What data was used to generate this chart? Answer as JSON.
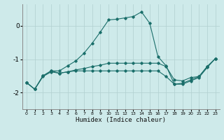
{
  "xlabel": "Humidex (Indice chaleur)",
  "bg_color": "#ceeaea",
  "grid_color": "#b0d0d0",
  "line_color": "#1a6e6a",
  "xlim": [
    -0.5,
    23.5
  ],
  "ylim": [
    -2.5,
    0.65
  ],
  "yticks": [
    0,
    -1,
    -2
  ],
  "xticks": [
    0,
    1,
    2,
    3,
    4,
    5,
    6,
    7,
    8,
    9,
    10,
    11,
    12,
    13,
    14,
    15,
    16,
    17,
    18,
    19,
    20,
    21,
    22,
    23
  ],
  "series": [
    {
      "x": [
        0,
        1,
        2,
        3,
        4,
        5,
        6,
        7,
        8,
        9,
        10,
        11,
        12,
        13,
        14,
        15,
        16,
        17,
        18,
        19,
        20,
        21,
        22,
        23
      ],
      "y": [
        -1.7,
        -1.9,
        -1.5,
        -1.35,
        -1.35,
        -1.2,
        -1.05,
        -0.82,
        -0.52,
        -0.18,
        0.18,
        0.2,
        0.24,
        0.28,
        0.42,
        0.08,
        -0.92,
        -1.2,
        -1.75,
        -1.72,
        -1.62,
        -1.52,
        -1.22,
        -0.98
      ]
    },
    {
      "x": [
        0,
        1,
        2,
        3,
        4,
        5,
        6,
        7,
        8,
        9,
        10,
        11,
        12,
        13,
        14,
        15,
        16,
        17,
        18,
        19,
        20,
        21,
        22,
        23
      ],
      "y": [
        -1.7,
        -1.9,
        -1.5,
        -1.35,
        -1.42,
        -1.38,
        -1.32,
        -1.28,
        -1.22,
        -1.18,
        -1.12,
        -1.12,
        -1.12,
        -1.12,
        -1.12,
        -1.12,
        -1.12,
        -1.22,
        -1.62,
        -1.65,
        -1.55,
        -1.52,
        -1.22,
        -0.98
      ]
    },
    {
      "x": [
        0,
        1,
        2,
        3,
        4,
        5,
        6,
        7,
        8,
        9,
        10,
        11,
        12,
        13,
        14,
        15,
        16,
        17,
        18,
        19,
        20,
        21,
        22,
        23
      ],
      "y": [
        -1.7,
        -1.9,
        -1.52,
        -1.38,
        -1.42,
        -1.38,
        -1.35,
        -1.35,
        -1.35,
        -1.35,
        -1.35,
        -1.35,
        -1.35,
        -1.35,
        -1.35,
        -1.35,
        -1.35,
        -1.52,
        -1.75,
        -1.75,
        -1.65,
        -1.55,
        -1.25,
        -0.98
      ]
    }
  ]
}
